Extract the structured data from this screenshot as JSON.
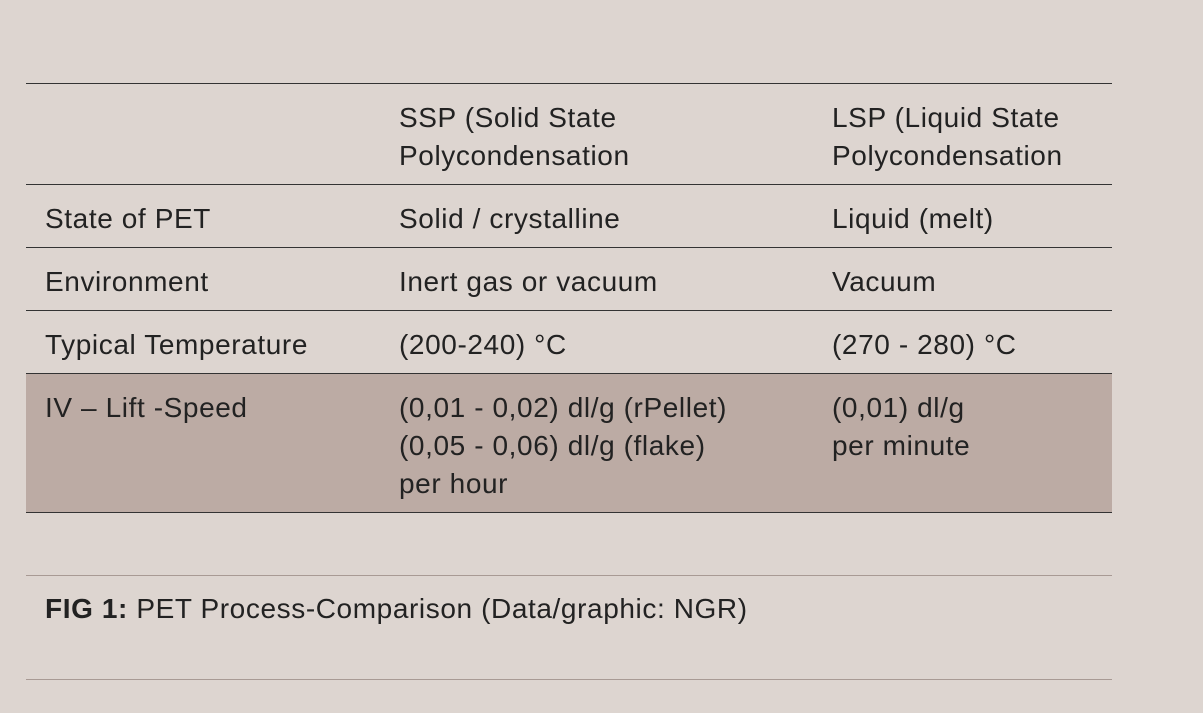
{
  "table": {
    "header": [
      [
        "SSP (Solid State",
        "Polycondensation"
      ],
      [
        "LSP (Liquid State",
        "Polycondensation"
      ]
    ],
    "rows": [
      {
        "label": "State of PET",
        "cells": [
          [
            "Solid / crystalline"
          ],
          [
            "Liquid (melt)"
          ]
        ]
      },
      {
        "label": "Environment",
        "cells": [
          [
            "Inert gas or vacuum"
          ],
          [
            "Vacuum"
          ]
        ]
      },
      {
        "label": "Typical Temperature",
        "cells": [
          [
            "(200-240) °C"
          ],
          [
            "(270 - 280) °C"
          ]
        ]
      },
      {
        "label": "IV – Lift -Speed",
        "cells": [
          [
            "(0,01 - 0,02) dl/g (rPellet)",
            "(0,05 - 0,06) dl/g (flake)",
            "per hour"
          ],
          [
            "(0,01) dl/g",
            "per minute"
          ]
        ]
      }
    ]
  },
  "caption": {
    "label": "FIG 1:",
    "text": "PET Process-Comparison (Data/graphic: NGR)"
  }
}
